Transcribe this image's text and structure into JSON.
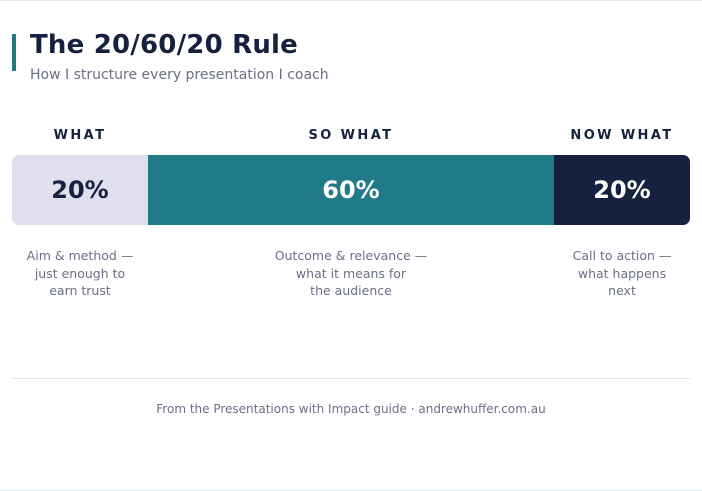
{
  "header": {
    "title": "The 20/60/20 Rule",
    "subtitle": "How I structure every presentation I coach"
  },
  "segments": [
    {
      "heading": "WHAT",
      "value": "20%",
      "description": "Aim & method —\njust enough to\nearn trust",
      "color": "#dfdfed"
    },
    {
      "heading": "SO WHAT",
      "value": "60%",
      "description": "Outcome & relevance —\nwhat it means for\nthe audience",
      "color": "#217a88"
    },
    {
      "heading": "NOW WHAT",
      "value": "20%",
      "description": "Call to action —\nwhat happens\nnext",
      "color": "#15213f"
    }
  ],
  "footer": {
    "text": "From the Presentations with Impact guide · andrewhuffer.com.au"
  },
  "colors": {
    "accent": "#217a88",
    "navy": "#15213f",
    "lavender": "#dfdfed",
    "muted_text": "#6b7086"
  }
}
